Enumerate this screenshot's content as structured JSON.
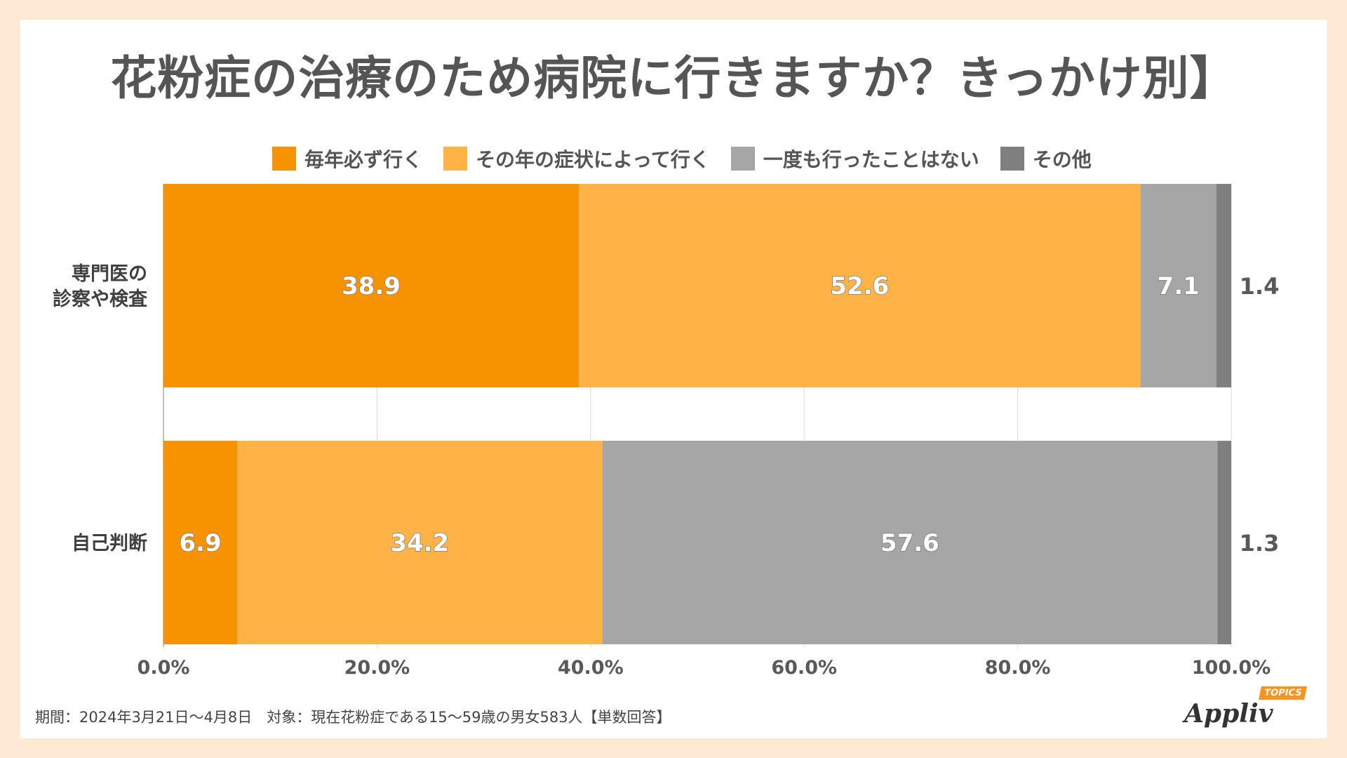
{
  "colors": {
    "every_year": "#f79200",
    "depends": "#ffb347",
    "never": "#a6a6a6",
    "other": "#7f7f7f"
  },
  "chart_data": {
    "type": "bar",
    "orientation": "horizontal",
    "stacked": true,
    "title": "花粉症の治療のため病院に行きますか？きっかけ別】",
    "categories": [
      "専門医の\n診察や検査",
      "自己判断"
    ],
    "series": [
      {
        "name": "毎年必ず行く",
        "values": [
          38.9,
          6.9
        ]
      },
      {
        "name": "その年の症状によって行く",
        "values": [
          52.6,
          34.2
        ]
      },
      {
        "name": "一度も行ったことはない",
        "values": [
          7.1,
          57.6
        ]
      },
      {
        "name": "その他",
        "values": [
          1.4,
          1.3
        ]
      }
    ],
    "value_labels": [
      [
        "38.9",
        "52.6",
        "7.1",
        "1.4"
      ],
      [
        "6.9",
        "34.2",
        "57.6",
        "1.3"
      ]
    ],
    "xlim": [
      0,
      100
    ],
    "xticks": [
      "0.0%",
      "20.0%",
      "40.0%",
      "60.0%",
      "80.0%",
      "100.0%"
    ],
    "grid": true,
    "legend_position": "top"
  },
  "footnote": "期間：2024年3月21日～4月8日　対象：現在花粉症である15～59歳の男女583人【単数回答】",
  "logo": {
    "word": "Appliv",
    "badge": "TOPICS"
  }
}
